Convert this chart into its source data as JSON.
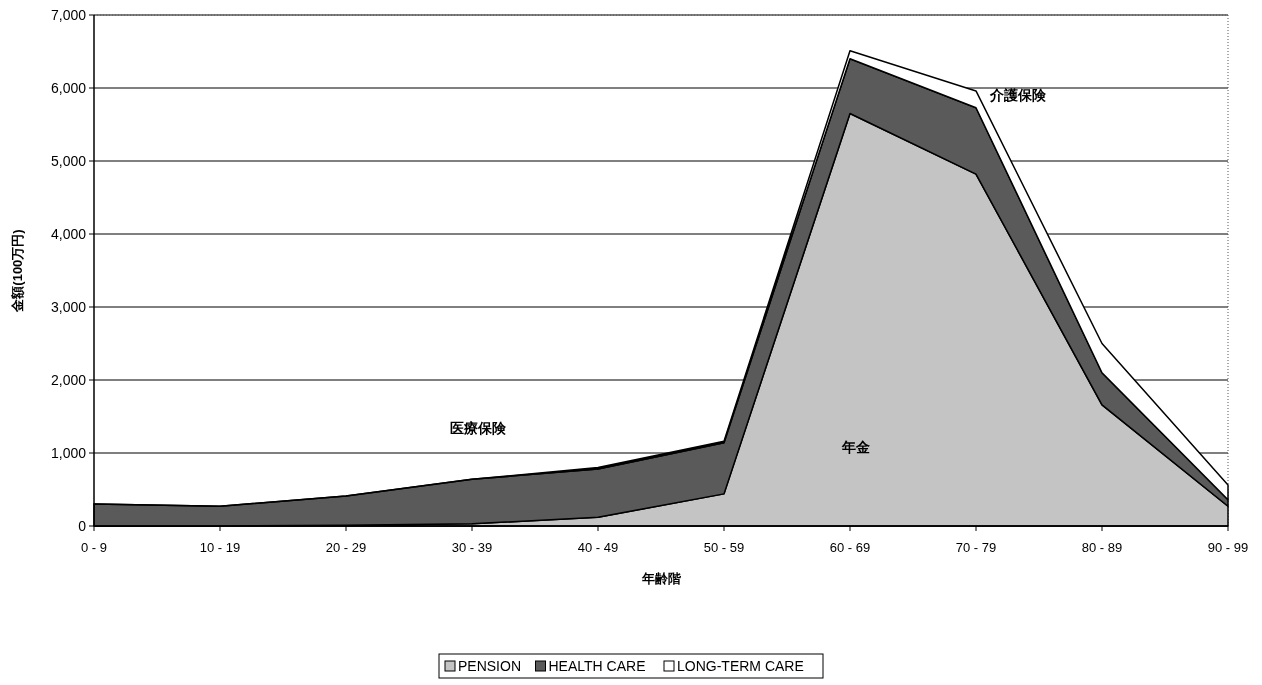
{
  "chart_data": {
    "type": "area",
    "stacked": true,
    "xlabel": "年齢階",
    "ylabel": "金額(100万円)",
    "categories": [
      "0 - 9",
      "10 - 19",
      "20 - 29",
      "30 - 39",
      "40 - 49",
      "50 - 59",
      "60 - 69",
      "70 - 79",
      "80 - 89",
      "90 - 99"
    ],
    "series": [
      {
        "name": "PENSION",
        "color": "#c4c4c4",
        "values": [
          0,
          0,
          10,
          30,
          120,
          440,
          5650,
          4820,
          1660,
          270
        ]
      },
      {
        "name": "HEALTH CARE",
        "color": "#5a5a5a",
        "values": [
          300,
          270,
          400,
          610,
          660,
          700,
          750,
          910,
          440,
          90
        ]
      },
      {
        "name": "LONG-TERM CARE",
        "color": "#ffffff",
        "values": [
          0,
          0,
          0,
          0,
          20,
          20,
          110,
          230,
          400,
          200
        ]
      }
    ],
    "ylim": [
      0,
      7000
    ],
    "yticks": [
      {
        "value": 0,
        "label": "0"
      },
      {
        "value": 1000,
        "label": "1,000"
      },
      {
        "value": 2000,
        "label": "2,000"
      },
      {
        "value": 3000,
        "label": "3,000"
      },
      {
        "value": 4000,
        "label": "4,000"
      },
      {
        "value": 5000,
        "label": "5,000"
      },
      {
        "value": 6000,
        "label": "6,000"
      },
      {
        "value": 7000,
        "label": "7,000"
      }
    ],
    "grid": "y",
    "legend": "bottom",
    "annotations": [
      "医療保険",
      "年金",
      "介護保険"
    ]
  }
}
